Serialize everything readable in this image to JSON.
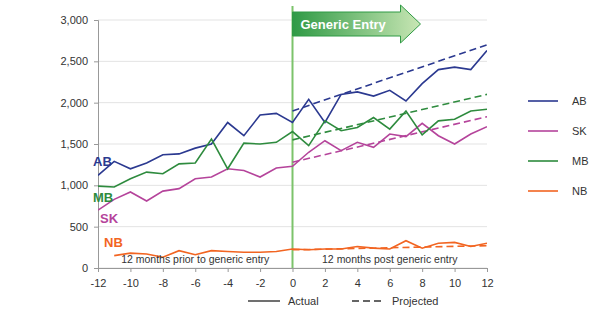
{
  "chart_data": {
    "type": "line",
    "x": [
      -12,
      -11,
      -10,
      -9,
      -8,
      -7,
      -6,
      -5,
      -4,
      -3,
      -2,
      -1,
      0,
      1,
      2,
      3,
      4,
      5,
      6,
      7,
      8,
      9,
      10,
      11,
      12
    ],
    "xlim": [
      -12,
      12
    ],
    "xticks": [
      -12,
      -10,
      -8,
      -6,
      -4,
      -2,
      0,
      2,
      4,
      6,
      8,
      10,
      12
    ],
    "ylim": [
      0,
      3000
    ],
    "yticks": [
      0,
      500,
      {
        "value": 1000,
        "label": "1,000"
      },
      {
        "value": 1500,
        "label": "1,500"
      },
      {
        "value": 2000,
        "label": "2,000"
      },
      {
        "value": 2500,
        "label": "2,500"
      },
      {
        "value": 3000,
        "label": "3,000"
      }
    ],
    "grid": true,
    "projected_x": [
      0,
      12
    ],
    "series": [
      {
        "name": "AB",
        "color": "#2b3990",
        "values": [
          1120,
          1290,
          1200,
          1270,
          1370,
          1380,
          1450,
          1500,
          1760,
          1600,
          1850,
          1870,
          1760,
          2040,
          1760,
          2100,
          2130,
          2080,
          2150,
          2020,
          2230,
          2400,
          2430,
          2400,
          2630
        ],
        "projected": [
          1900,
          2700
        ]
      },
      {
        "name": "SK",
        "color": "#b5449b",
        "values": [
          700,
          830,
          920,
          810,
          930,
          960,
          1080,
          1100,
          1200,
          1180,
          1100,
          1210,
          1230,
          1400,
          1540,
          1420,
          1520,
          1460,
          1620,
          1590,
          1750,
          1600,
          1500,
          1620,
          1710
        ],
        "projected": [
          1280,
          1830
        ]
      },
      {
        "name": "MB",
        "color": "#2e8b3e",
        "values": [
          990,
          980,
          1080,
          1160,
          1140,
          1260,
          1270,
          1560,
          1200,
          1510,
          1500,
          1520,
          1650,
          1480,
          1780,
          1660,
          1700,
          1820,
          1680,
          1900,
          1610,
          1780,
          1800,
          1900,
          1920
        ],
        "projected": [
          1550,
          2100
        ]
      },
      {
        "name": "NB",
        "color": "#f26522",
        "values": [
          null,
          150,
          180,
          170,
          130,
          210,
          160,
          210,
          200,
          190,
          190,
          200,
          230,
          220,
          230,
          230,
          260,
          240,
          230,
          330,
          240,
          300,
          310,
          260,
          300
        ],
        "projected": [
          220,
          270
        ]
      }
    ],
    "legend": "right",
    "generic_entry": {
      "x": 0,
      "label": "Generic Entry"
    },
    "annotations": [
      {
        "x": -6,
        "text": "12 months prior to generic entry"
      },
      {
        "x": 6,
        "text": "12 months post generic entry"
      }
    ],
    "style_legend": [
      {
        "label": "Actual",
        "line_style": "solid"
      },
      {
        "label": "Projected",
        "line_style": "dashed"
      }
    ]
  }
}
